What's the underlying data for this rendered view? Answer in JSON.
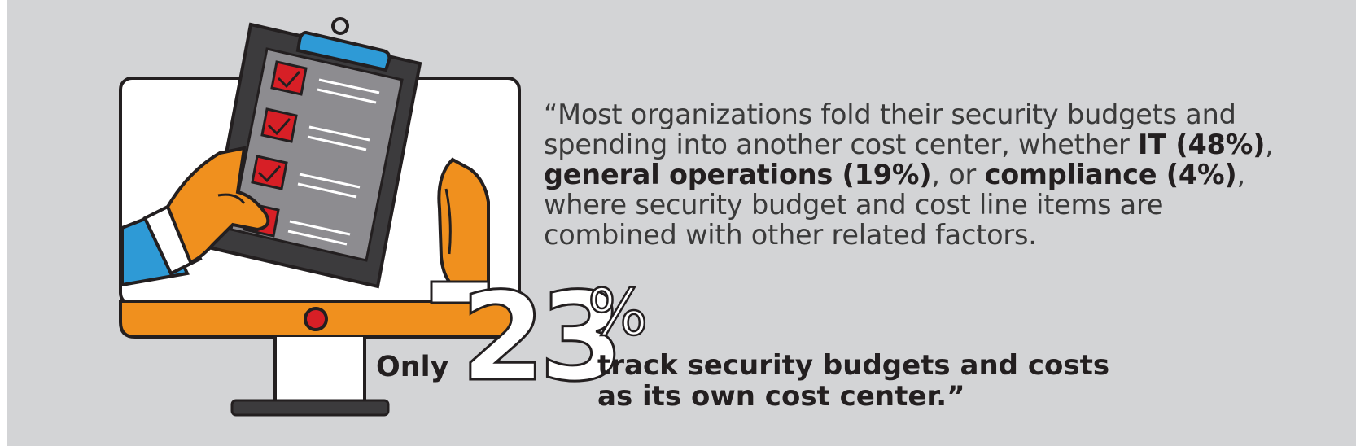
{
  "quote": {
    "open_mark": "“",
    "text_1": "Most organizations fold their security budgets and spending into another cost center, whether ",
    "bold_it": "IT (48%)",
    "sep_1": ", ",
    "bold_ops": "general operations (19%)",
    "sep_2": ", or ",
    "bold_compliance": "compliance (4%)",
    "text_2": ", where security budget and cost line items are combined with other related factors."
  },
  "stat": {
    "prefix": "Only",
    "number": "23",
    "unit": "%",
    "caption_line1": "track security budgets and costs",
    "caption_line2": "as its own cost center.”"
  },
  "colors": {
    "background": "#d3d4d6",
    "orange": "#f0901e",
    "red": "#d71f26",
    "blue": "#2e9ad6",
    "dark": "#231f20",
    "clipboard": "#3c3b3d",
    "paper": "#8d8c90"
  },
  "icons": {
    "illustration": "monitor-clipboard-checklist-icon"
  }
}
